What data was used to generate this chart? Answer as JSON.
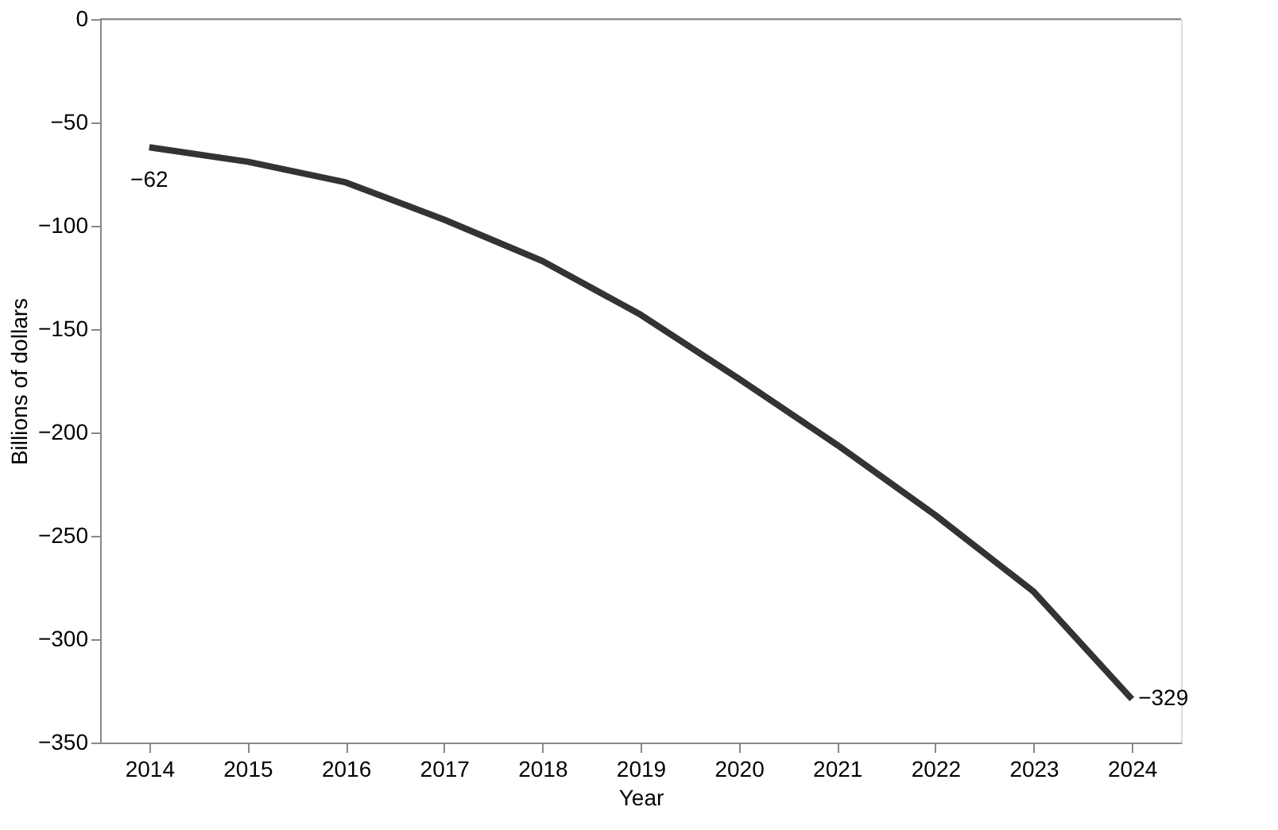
{
  "chart_data": {
    "type": "line",
    "xlabel": "Year",
    "ylabel": "Billions of dollars",
    "categories": [
      "2014",
      "2015",
      "2016",
      "2017",
      "2018",
      "2019",
      "2020",
      "2021",
      "2022",
      "2023",
      "2024"
    ],
    "series": [
      {
        "color": "#333333",
        "values": [
          -62,
          -69,
          -79,
          -97,
          -117,
          -143,
          -174,
          -206,
          -240,
          -277,
          -329
        ],
        "value_labels": [
          "−62",
          null,
          null,
          null,
          null,
          null,
          null,
          null,
          null,
          null,
          "−329"
        ]
      }
    ],
    "ylim": [
      -350,
      0
    ],
    "yticks": [
      0,
      {
        "value": -50,
        "label": "−50"
      },
      {
        "value": -100,
        "label": "−100"
      },
      {
        "value": -150,
        "label": "−150"
      },
      {
        "value": -200,
        "label": "−200"
      },
      {
        "value": -250,
        "label": "−250"
      },
      {
        "value": -300,
        "label": "−300"
      },
      {
        "value": -350,
        "label": "−350"
      }
    ],
    "grid": false,
    "marker": "none",
    "line_style": "solid"
  }
}
